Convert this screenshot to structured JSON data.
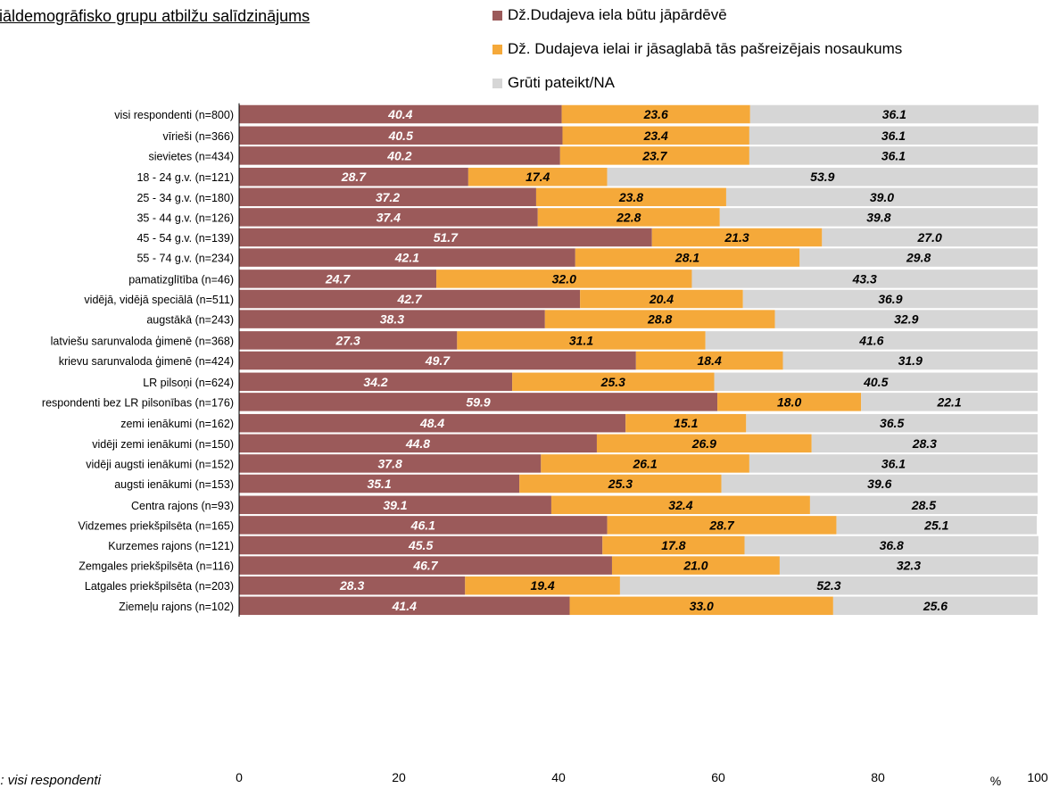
{
  "title": "ciāldemogrāfisko grupu atbilžu salīdzinājums",
  "footnote": "e: visi respondenti",
  "colors": {
    "s1": "#9B5A5A",
    "s2": "#F5A93A",
    "s3": "#D6D6D6",
    "label": "#000000",
    "grid": "#000000"
  },
  "legend": [
    {
      "label": "Dž.Dudajeva iela būtu jāpārdēvē",
      "color": "#9B5A5A"
    },
    {
      "label": "Dž. Dudajeva ielai ir jāsaglabā tās pašreizējais nosaukums",
      "color": "#F5A93A"
    },
    {
      "label": "Grūti pateikt/NA",
      "color": "#D6D6D6"
    }
  ],
  "chart_data": {
    "type": "bar",
    "orientation": "horizontal",
    "stacked": true,
    "xlim": [
      0,
      100
    ],
    "x_ticks": [
      "0",
      "20",
      "40",
      "60",
      "80",
      "100"
    ],
    "x_unit": "%",
    "grid": false,
    "legend_position": "top-right",
    "categories": [
      "visi respondenti (n=800)",
      "vīrieši (n=366)",
      "sievietes (n=434)",
      "18 - 24 g.v. (n=121)",
      "25 - 34 g.v. (n=180)",
      "35 - 44 g.v. (n=126)",
      "45 - 54 g.v. (n=139)",
      "55 - 74 g.v. (n=234)",
      "pamatizglītība (n=46)",
      "vidējā, vidējā speciālā (n=511)",
      "augstākā (n=243)",
      "latviešu sarunvaloda ģimenē (n=368)",
      "krievu sarunvaloda ģimenē (n=424)",
      "LR pilsoņi (n=624)",
      "respondenti bez LR pilsonības (n=176)",
      "zemi ienākumi (n=162)",
      "vidēji zemi ienākumi (n=150)",
      "vidēji augsti ienākumi (n=152)",
      "augsti ienākumi (n=153)",
      "Centra rajons (n=93)",
      "Vidzemes priekšpilsēta (n=165)",
      "Kurzemes rajons (n=121)",
      "Zemgales priekšpilsēta (n=116)",
      "Latgales priekšpilsēta (n=203)",
      "Ziemeļu rajons (n=102)"
    ],
    "groups": [
      [
        0
      ],
      [
        1,
        2
      ],
      [
        3,
        4,
        5,
        6,
        7
      ],
      [
        8,
        9,
        10
      ],
      [
        11,
        12
      ],
      [
        13,
        14
      ],
      [
        15,
        16,
        17,
        18
      ],
      [
        19,
        20,
        21,
        22,
        23,
        24
      ]
    ],
    "series": [
      {
        "name": "Dž.Dudajeva iela būtu jāpārdēvē",
        "color": "#9B5A5A",
        "values": [
          40.4,
          40.5,
          40.2,
          28.7,
          37.2,
          37.4,
          51.7,
          42.1,
          24.7,
          42.7,
          38.3,
          27.3,
          49.7,
          34.2,
          59.9,
          48.4,
          44.8,
          37.8,
          35.1,
          39.1,
          46.1,
          45.5,
          46.7,
          28.3,
          41.4
        ]
      },
      {
        "name": "Dž. Dudajeva ielai ir jāsaglabā tās pašreizējais nosaukums",
        "color": "#F5A93A",
        "values": [
          23.6,
          23.4,
          23.7,
          17.4,
          23.8,
          22.8,
          21.3,
          28.1,
          32.0,
          20.4,
          28.8,
          31.1,
          18.4,
          25.3,
          18.0,
          15.1,
          26.9,
          26.1,
          25.3,
          32.4,
          28.7,
          17.8,
          21.0,
          19.4,
          33.0
        ]
      },
      {
        "name": "Grūti pateikt/NA",
        "color": "#D6D6D6",
        "values": [
          36.1,
          36.1,
          36.1,
          53.9,
          39.0,
          39.8,
          27.0,
          29.8,
          43.3,
          36.9,
          32.9,
          41.6,
          31.9,
          40.5,
          22.1,
          36.5,
          28.3,
          36.1,
          39.6,
          28.5,
          25.1,
          36.8,
          32.3,
          52.3,
          25.6
        ]
      }
    ]
  }
}
